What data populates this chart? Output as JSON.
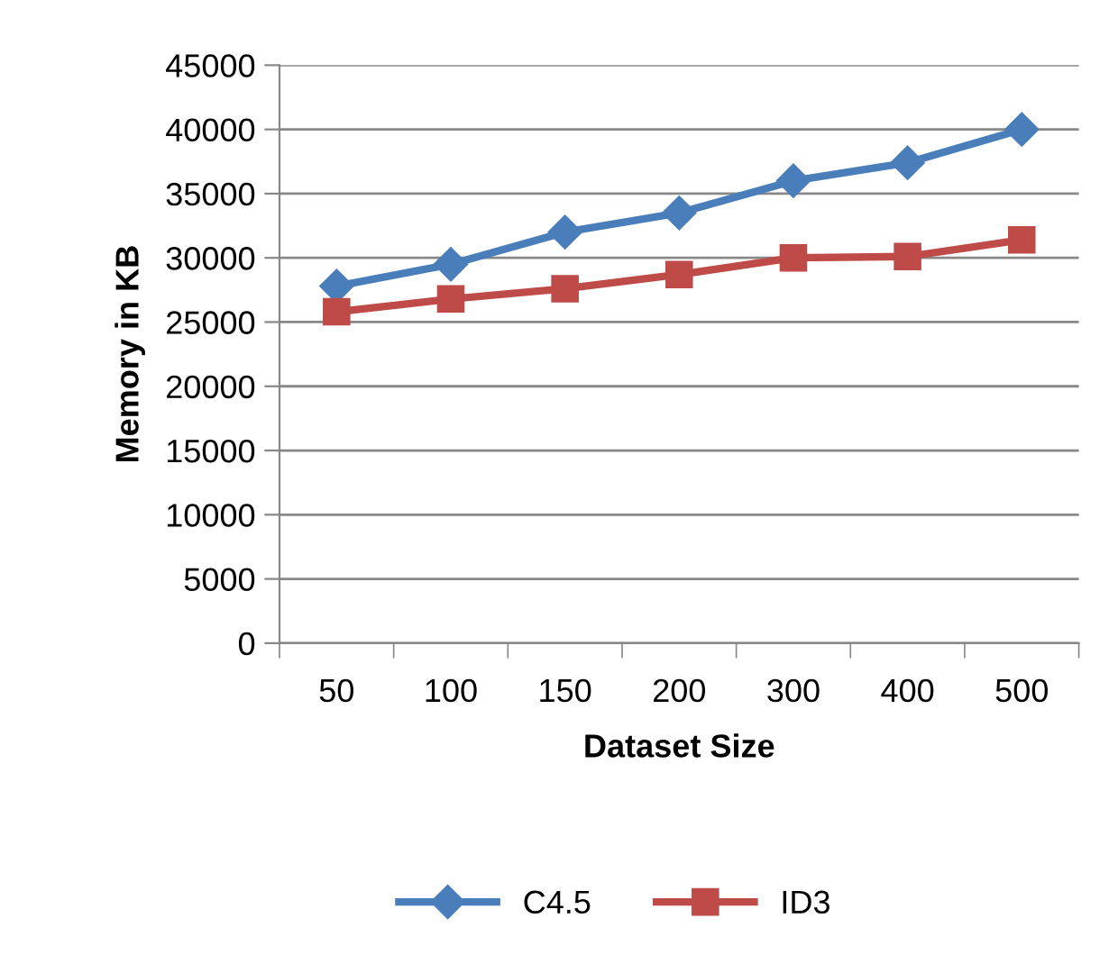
{
  "chart_data": {
    "type": "line",
    "xlabel": "Dataset Size",
    "ylabel": "Memory in KB",
    "categories": [
      "50",
      "100",
      "150",
      "200",
      "300",
      "400",
      "500"
    ],
    "series": [
      {
        "name": "C4.5",
        "color": "#4a7ebb",
        "marker": "diamond",
        "values": [
          27800,
          29500,
          32000,
          33500,
          36000,
          37400,
          40000
        ]
      },
      {
        "name": "ID3",
        "color": "#be4b48",
        "marker": "square",
        "values": [
          25800,
          26800,
          27600,
          28700,
          30000,
          30100,
          31400
        ]
      }
    ],
    "ylim": [
      0,
      45000
    ],
    "yticks": [
      0,
      5000,
      10000,
      15000,
      20000,
      25000,
      30000,
      35000,
      40000,
      45000
    ],
    "grid": "y",
    "legend": "bottom",
    "line_style": "solid"
  }
}
